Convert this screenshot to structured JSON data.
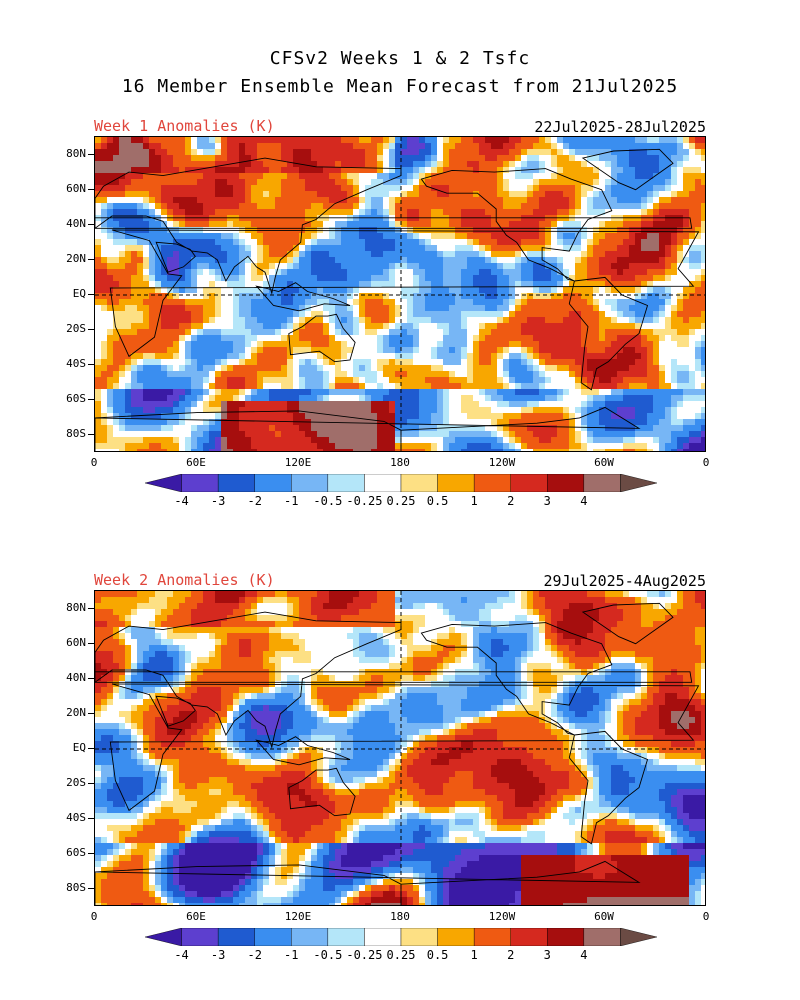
{
  "title_line1": "CFSv2 Weeks 1 & 2 Tsfc",
  "title_line2": "16 Member Ensemble Mean Forecast from 21Jul2025",
  "panels": [
    {
      "label": "Week 1 Anomalies (K)",
      "date_range": "22Jul2025-28Jul2025"
    },
    {
      "label": "Week 2 Anomalies (K)",
      "date_range": "29Jul2025-4Aug2025"
    }
  ],
  "lat_ticks": [
    "80N",
    "60N",
    "40N",
    "20N",
    "EQ",
    "20S",
    "40S",
    "60S",
    "80S"
  ],
  "lon_ticks": [
    "0",
    "60E",
    "120E",
    "180",
    "120W",
    "60W",
    "0"
  ],
  "colorbar": {
    "labels": [
      "-4",
      "-3",
      "-2",
      "-1",
      "-0.5",
      "-0.25",
      "0.25",
      "0.5",
      "1",
      "2",
      "3",
      "4"
    ],
    "colors": [
      "#3a1aa5",
      "#5d3fcf",
      "#1f5bd0",
      "#3a8ef0",
      "#77b6f5",
      "#b4e6f9",
      "#ffffff",
      "#fde084",
      "#f8a700",
      "#ef5a12",
      "#d5291f",
      "#a60e0e",
      "#a06e6a",
      "#6b4b44"
    ]
  },
  "colors": {
    "title_red": "#e0463c"
  }
}
